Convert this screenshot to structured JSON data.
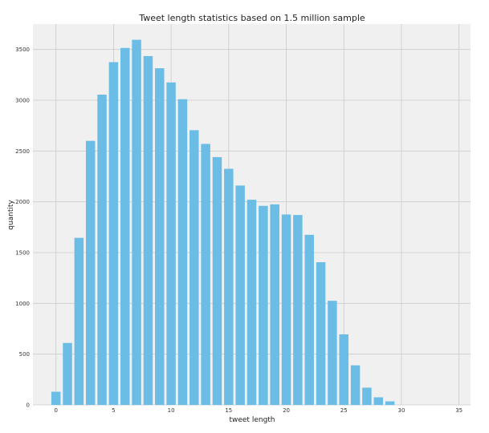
{
  "chart_data": {
    "type": "bar",
    "title": "Tweet length statistics based on 1.5 million sample",
    "xlabel": "tweet length",
    "ylabel": "quantity",
    "x": [
      0,
      1,
      2,
      3,
      4,
      5,
      6,
      7,
      8,
      9,
      10,
      11,
      12,
      13,
      14,
      15,
      16,
      17,
      18,
      19,
      20,
      21,
      22,
      23,
      24,
      25,
      26,
      27,
      28,
      29
    ],
    "values": [
      130,
      610,
      1645,
      2600,
      3055,
      3375,
      3515,
      3595,
      3435,
      3315,
      3175,
      3010,
      2705,
      2570,
      2440,
      2325,
      2160,
      2020,
      1960,
      1975,
      1875,
      1870,
      1675,
      1405,
      1025,
      695,
      390,
      170,
      75,
      35
    ],
    "xlim": [
      -2,
      36
    ],
    "ylim": [
      0,
      3750
    ],
    "xticks": [
      0,
      5,
      10,
      15,
      20,
      25,
      30,
      35
    ],
    "yticks": [
      0,
      500,
      1000,
      1500,
      2000,
      2500,
      3000,
      3500
    ],
    "grid": true,
    "colors": {
      "bar": "#6bbde6",
      "plot_background": "#f0f0f0",
      "grid": "#cbcbcb"
    }
  }
}
